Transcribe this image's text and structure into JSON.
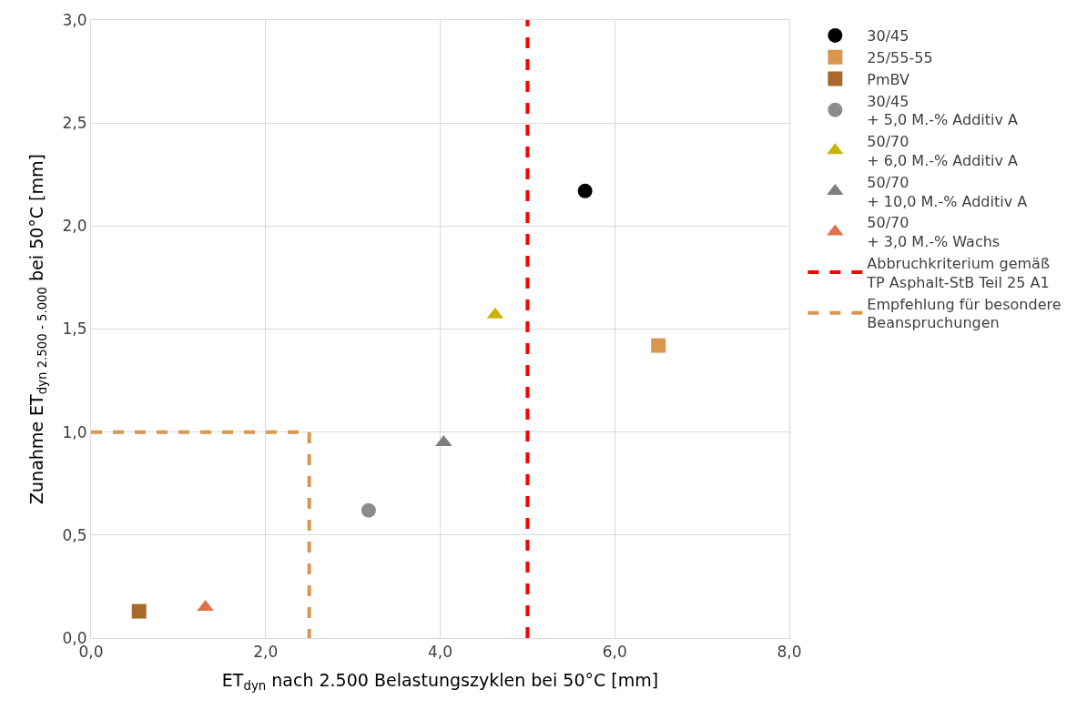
{
  "chart_data": {
    "type": "scatter",
    "xlabel": "ET$_{dyn}$ nach 2.500 Belastungszyklen bei 50°C [mm]",
    "ylabel": "Zunahme ET$_{dyn 2.500 - 5.000}$ bei 50°C [mm]",
    "xlim": [
      0,
      8
    ],
    "ylim": [
      0,
      3
    ],
    "xticks": [
      {
        "value": 0,
        "label": "0,0"
      },
      {
        "value": 2,
        "label": "2,0"
      },
      {
        "value": 4,
        "label": "4,0"
      },
      {
        "value": 6,
        "label": "6,0"
      },
      {
        "value": 8,
        "label": "8,0"
      }
    ],
    "yticks": [
      {
        "value": 0,
        "label": "0,0"
      },
      {
        "value": 0.5,
        "label": "0,5"
      },
      {
        "value": 1,
        "label": "1,0"
      },
      {
        "value": 1.5,
        "label": "1,5"
      },
      {
        "value": 2,
        "label": "2,0"
      },
      {
        "value": 2.5,
        "label": "2,5"
      },
      {
        "value": 3,
        "label": "3,0"
      }
    ],
    "grid": true,
    "legend": "right",
    "series": [
      {
        "name": "30/45",
        "color": "#000000",
        "marker": "circle",
        "x": [
          5.66
        ],
        "values": [
          2.17
        ]
      },
      {
        "name": "25/55-55",
        "color": "#d9964f",
        "marker": "square",
        "x": [
          6.5
        ],
        "values": [
          1.42
        ]
      },
      {
        "name": "PmBV",
        "color": "#a86a2c",
        "marker": "square",
        "x": [
          0.55
        ],
        "values": [
          0.13
        ]
      },
      {
        "name": "30/45\n+ 5,0 M.-% Additiv A",
        "color": "#8c8c8c",
        "marker": "circle",
        "x": [
          3.18
        ],
        "values": [
          0.62
        ]
      },
      {
        "name": "50/70\n+ 6,0 M.-% Additiv A",
        "color": "#c8b400",
        "marker": "triangle",
        "x": [
          4.63
        ],
        "values": [
          1.57
        ]
      },
      {
        "name": "50/70\n+ 10,0 M.-% Additiv A",
        "color": "#7f7f7f",
        "marker": "triangle",
        "x": [
          4.04
        ],
        "values": [
          0.95
        ]
      },
      {
        "name": "50/70\n+ 3,0 M.-% Wachs",
        "color": "#e0704f",
        "marker": "triangle",
        "x": [
          1.31
        ],
        "values": [
          0.15
        ]
      },
      {
        "name": "Abbruchkriterium gemäß\nTP Asphalt-StB Teil 25 A1",
        "type": "line",
        "color": "#ff0000",
        "line_style": "dashed",
        "marker": "none",
        "x": [
          5,
          5
        ],
        "values": [
          0,
          3
        ]
      },
      {
        "name": "Empfehlung für besondere\nBeanspruchungen",
        "type": "line",
        "color": "#d9964f",
        "line_style": "dashed",
        "marker": "none",
        "x": [
          0,
          2.5,
          2.5
        ],
        "values": [
          1,
          1,
          0
        ]
      }
    ]
  }
}
